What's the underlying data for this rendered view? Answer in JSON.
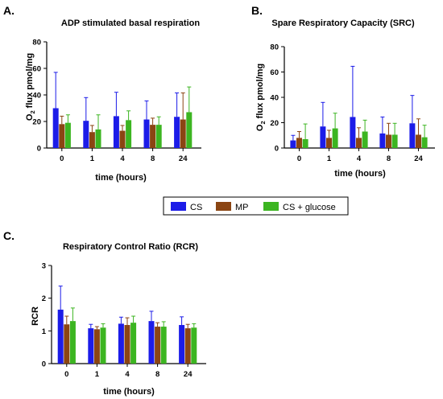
{
  "legend": {
    "items": [
      {
        "name": "CS",
        "color": "#1c1ce8"
      },
      {
        "name": "MP",
        "color": "#8b4513"
      },
      {
        "name": "CS + glucose",
        "color": "#3cb521"
      }
    ]
  },
  "chart_data": [
    {
      "panel_label": "A.",
      "type": "bar",
      "title": "ADP stimulated basal respiration",
      "xlabel": "time (hours)",
      "ylabel": "O",
      "ylabel_sub": "2",
      "ylabel_rest": " flux pmol/mg",
      "categories": [
        "0",
        "1",
        "4",
        "8",
        "24"
      ],
      "ylim": [
        0,
        80
      ],
      "yticks": [
        "0",
        "20",
        "40",
        "60",
        "80"
      ],
      "series": [
        {
          "name": "CS",
          "values": [
            30,
            20.5,
            24,
            21.5,
            23.5
          ],
          "errors": [
            27,
            17.5,
            18,
            14,
            18
          ]
        },
        {
          "name": "MP",
          "values": [
            18,
            12,
            13,
            17.5,
            21.5
          ],
          "errors": [
            6,
            5,
            4,
            5,
            20
          ]
        },
        {
          "name": "CS + glucose",
          "values": [
            19,
            14,
            21,
            17.5,
            27
          ],
          "errors": [
            6,
            11,
            7,
            6,
            19
          ]
        }
      ]
    },
    {
      "panel_label": "B.",
      "type": "bar",
      "title": "Spare Respiratory Capacity (SRC)",
      "xlabel": "time (hours)",
      "ylabel": "O",
      "ylabel_sub": "2",
      "ylabel_rest": " flux pmol/mg",
      "categories": [
        "0",
        "1",
        "4",
        "8",
        "24"
      ],
      "ylim": [
        0,
        80
      ],
      "yticks": [
        "0",
        "20",
        "40",
        "60",
        "80"
      ],
      "series": [
        {
          "name": "CS",
          "values": [
            6,
            17,
            24.5,
            11.5,
            19.5
          ],
          "errors": [
            4,
            19,
            40,
            13,
            22
          ]
        },
        {
          "name": "MP",
          "values": [
            8,
            8,
            8,
            10.5,
            10.5
          ],
          "errors": [
            5,
            6,
            8,
            9,
            12.5
          ]
        },
        {
          "name": "CS + glucose",
          "values": [
            7,
            15.5,
            13,
            10.5,
            8.5
          ],
          "errors": [
            12,
            12,
            9,
            9,
            9.5
          ]
        }
      ]
    },
    {
      "panel_label": "C.",
      "type": "bar",
      "title": "Respiratory Control Ratio (RCR)",
      "xlabel": "time (hours)",
      "ylabel": "RCR",
      "ylabel_sub": "",
      "ylabel_rest": "",
      "categories": [
        "0",
        "1",
        "4",
        "8",
        "24"
      ],
      "ylim": [
        0,
        3
      ],
      "yticks": [
        "0",
        "1",
        "2",
        "3"
      ],
      "series": [
        {
          "name": "CS",
          "values": [
            1.65,
            1.08,
            1.22,
            1.3,
            1.18
          ],
          "errors": [
            0.72,
            0.12,
            0.2,
            0.3,
            0.25
          ]
        },
        {
          "name": "MP",
          "values": [
            1.2,
            1.05,
            1.18,
            1.13,
            1.08
          ],
          "errors": [
            0.25,
            0.08,
            0.22,
            0.12,
            0.12
          ]
        },
        {
          "name": "CS + glucose",
          "values": [
            1.3,
            1.1,
            1.25,
            1.13,
            1.1
          ],
          "errors": [
            0.4,
            0.12,
            0.2,
            0.15,
            0.12
          ]
        }
      ]
    }
  ]
}
